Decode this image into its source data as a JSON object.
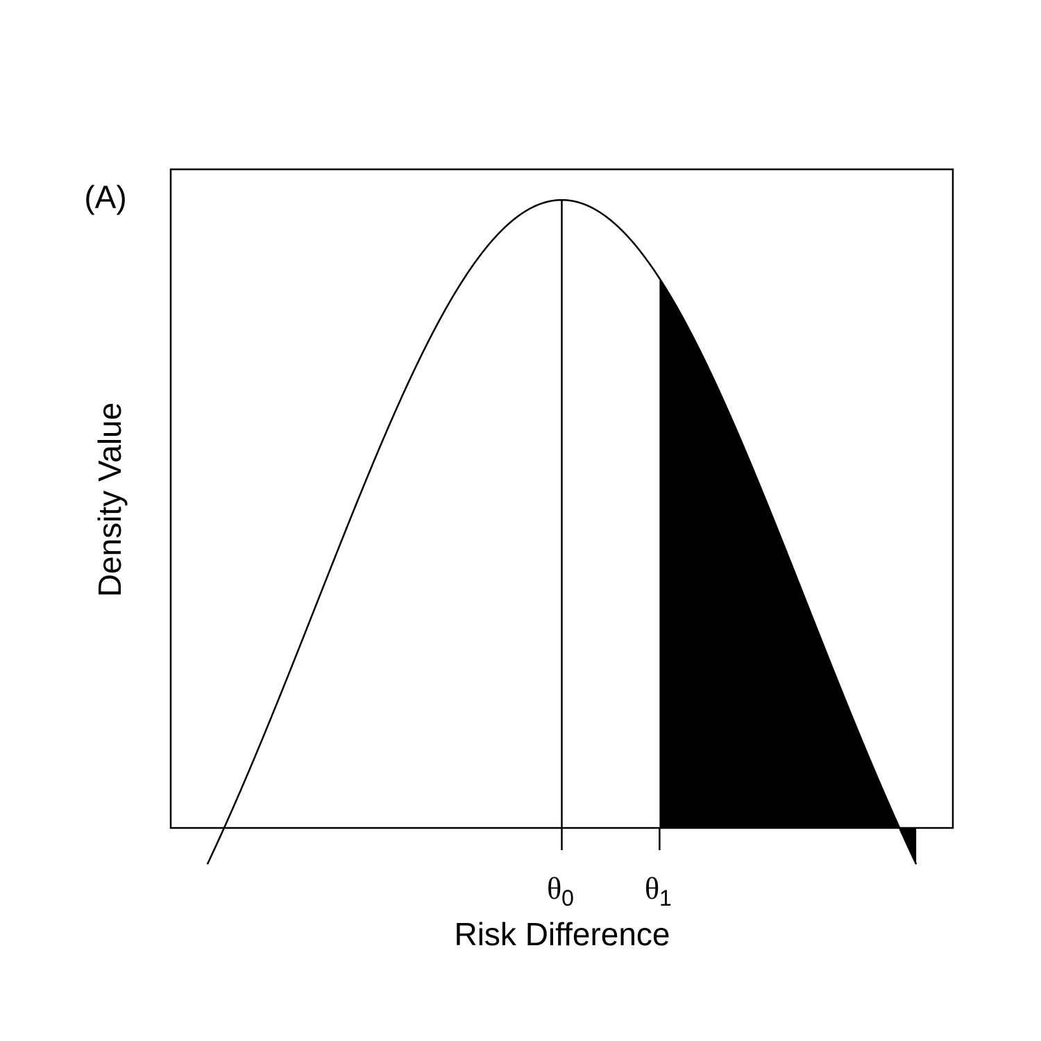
{
  "chart_data": {
    "type": "area",
    "panel_label": "(A)",
    "title": "",
    "xlabel": "Risk Difference",
    "ylabel": "Density Value",
    "xlim": [
      -3.2,
      3.2
    ],
    "ylim": [
      0.385,
      1.03
    ],
    "curve": {
      "description_function": "exp(-x^2/8)",
      "x": [
        -3.2,
        -2.8,
        -2.4,
        -2.0,
        -1.6,
        -1.2,
        -0.8,
        -0.4,
        0.0,
        0.4,
        0.8,
        1.2,
        1.6,
        2.0,
        2.4,
        2.8,
        3.2
      ],
      "y": [
        0.278,
        0.375,
        0.487,
        0.607,
        0.726,
        0.835,
        0.923,
        0.98,
        1.0,
        0.98,
        0.923,
        0.835,
        0.726,
        0.607,
        0.487,
        0.375,
        0.278
      ]
    },
    "vertical_line_x": 0.0,
    "shaded_region": {
      "from_x": 0.8,
      "to_x": 3.2,
      "color": "#000000"
    },
    "ticks": [
      {
        "x": 0.0,
        "symbol": "θ",
        "subscript": "0"
      },
      {
        "x": 0.8,
        "symbol": "θ",
        "subscript": "1"
      }
    ],
    "grid": false,
    "legend": false
  }
}
